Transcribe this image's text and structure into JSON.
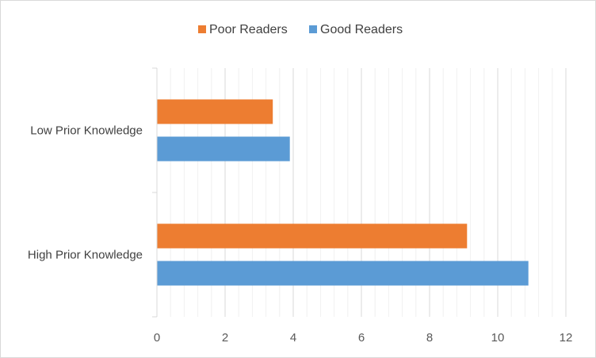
{
  "chart_data": {
    "type": "bar",
    "orientation": "horizontal",
    "categories": [
      "Low Prior Knowledge",
      "High Prior Knowledge"
    ],
    "series": [
      {
        "name": "Poor Readers",
        "color": "#ED7D31",
        "values": [
          3.4,
          9.1
        ]
      },
      {
        "name": "Good Readers",
        "color": "#5B9BD5",
        "values": [
          3.9,
          10.9
        ]
      }
    ],
    "xlim": [
      0,
      12
    ],
    "x_ticks": [
      0,
      2,
      4,
      6,
      8,
      10,
      12
    ],
    "minor_gridlines_step": 0.4,
    "grid": true,
    "legend_position": "top"
  }
}
